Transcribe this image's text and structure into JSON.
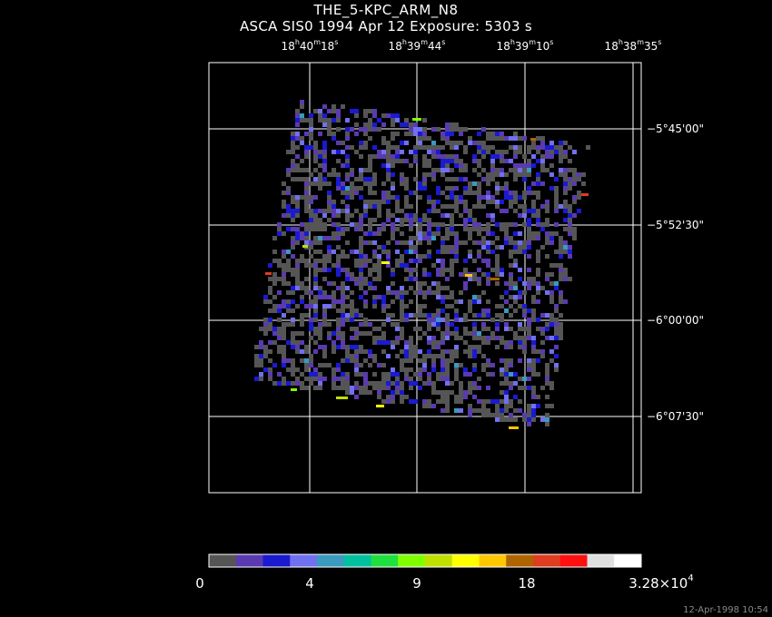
{
  "header": {
    "title": "THE_5-KPC_ARM_N8",
    "subtitle": "ASCA SIS0   1994 Apr 12    Exposure:  5303 s"
  },
  "ra_axis": {
    "labels": [
      {
        "h": "18",
        "m": "40",
        "s": "18"
      },
      {
        "h": "18",
        "m": "39",
        "s": "44"
      },
      {
        "h": "18",
        "m": "39",
        "s": "10"
      },
      {
        "h": "18",
        "m": "38",
        "s": "35"
      }
    ]
  },
  "dec_axis": {
    "labels": [
      "−5°45'00\"",
      "−5°52'30\"",
      "−6°00'00\"",
      "−6°07'30\""
    ]
  },
  "colorbar": {
    "labels": [
      "0",
      "4",
      "9",
      "18",
      "3.28×10"
    ],
    "max_exponent": "4",
    "colors": [
      "#555555",
      "#5a3ab0",
      "#1a1ad0",
      "#7070f0",
      "#3a9ac0",
      "#00c0a0",
      "#20e040",
      "#80ff00",
      "#c0e000",
      "#ffff00",
      "#ffc800",
      "#b06400",
      "#e03c20",
      "#ff1010",
      "#e0e0e0",
      "#ffffff"
    ]
  },
  "timestamp": "12-Apr-1998 10:54"
}
